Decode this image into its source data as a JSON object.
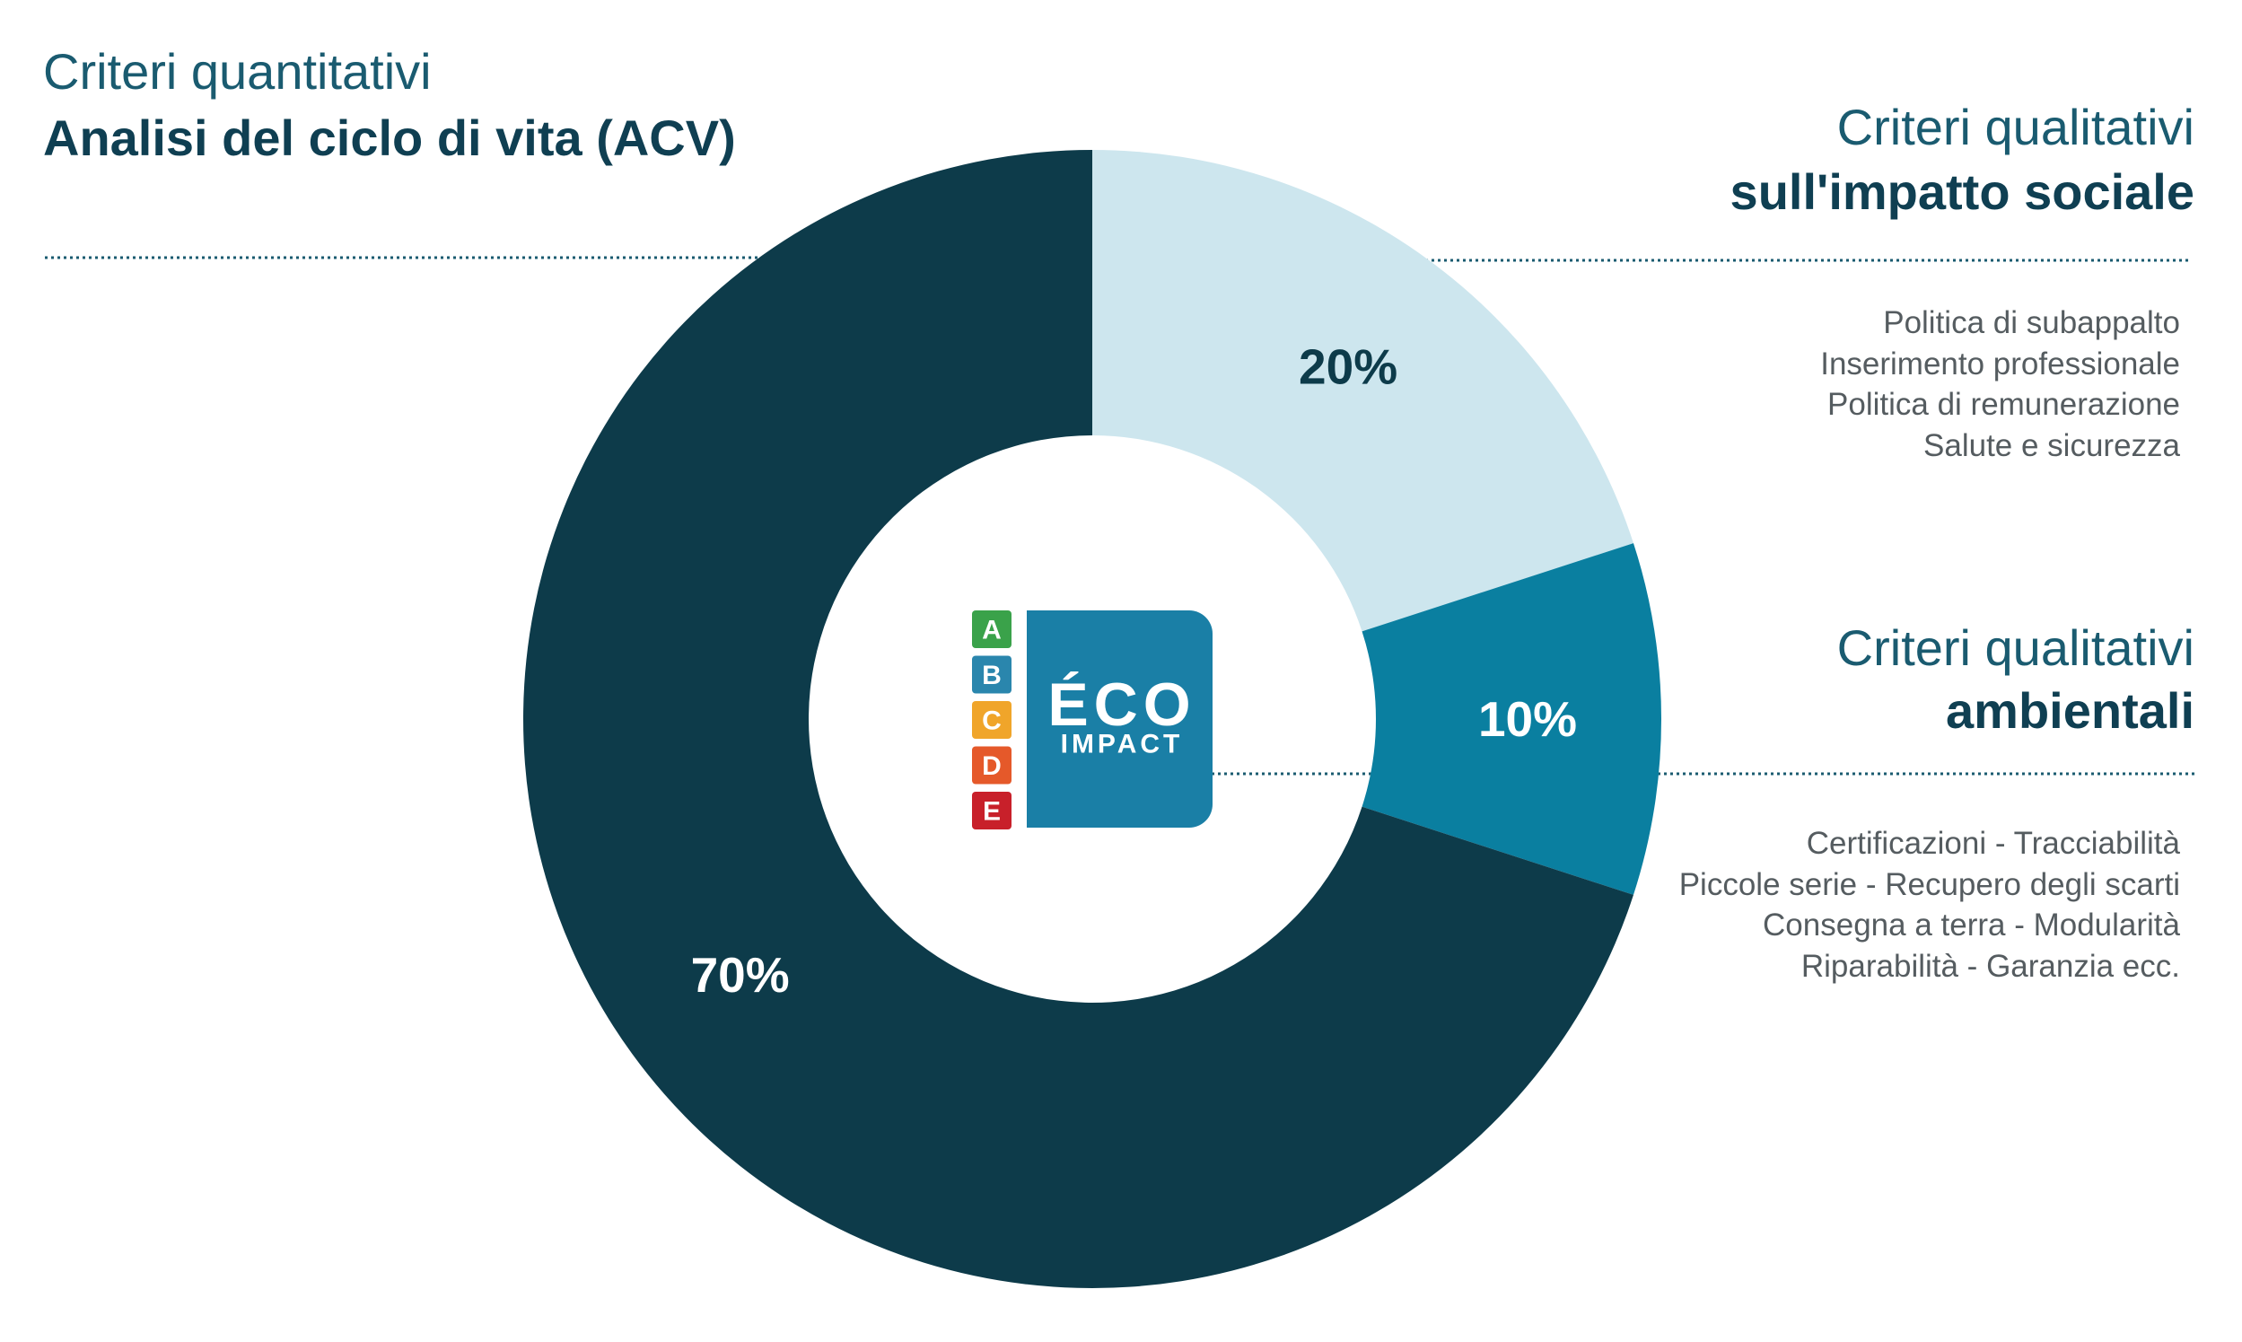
{
  "chart_data": {
    "type": "donut",
    "categories": [
      "sull'impatto sociale",
      "ambientali",
      "Analisi del ciclo di vita (ACV)"
    ],
    "category_kickers": [
      "Criteri qualitativi",
      "Criteri qualitativi",
      "Criteri quantitativi"
    ],
    "values": [
      20,
      10,
      70
    ],
    "value_labels": [
      "20%",
      "10%",
      "70%"
    ],
    "colors": [
      "#cde6ee",
      "#0a7fa0",
      "#0d3b4a"
    ],
    "label_colors": [
      "#0d3b4a",
      "#ffffff",
      "#ffffff"
    ],
    "notes": [
      [
        "Politica di subappalto",
        "Inserimento professionale",
        "Politica di remunerazione",
        "Salute e sicurezza"
      ],
      [
        "Certificazioni - Tracciabilità",
        "Piccole serie - Recupero degli scarti",
        "Consegna a terra - Modularità",
        "Riparabilità - Garanzia ecc."
      ],
      []
    ],
    "logo": {
      "grades": [
        "A",
        "B",
        "C",
        "D",
        "E"
      ],
      "grade_colors": [
        "#3aa24a",
        "#2a86ad",
        "#f0a52a",
        "#e5592a",
        "#c8202a"
      ],
      "title": "ÉCO",
      "subtitle": "IMPACT"
    }
  }
}
